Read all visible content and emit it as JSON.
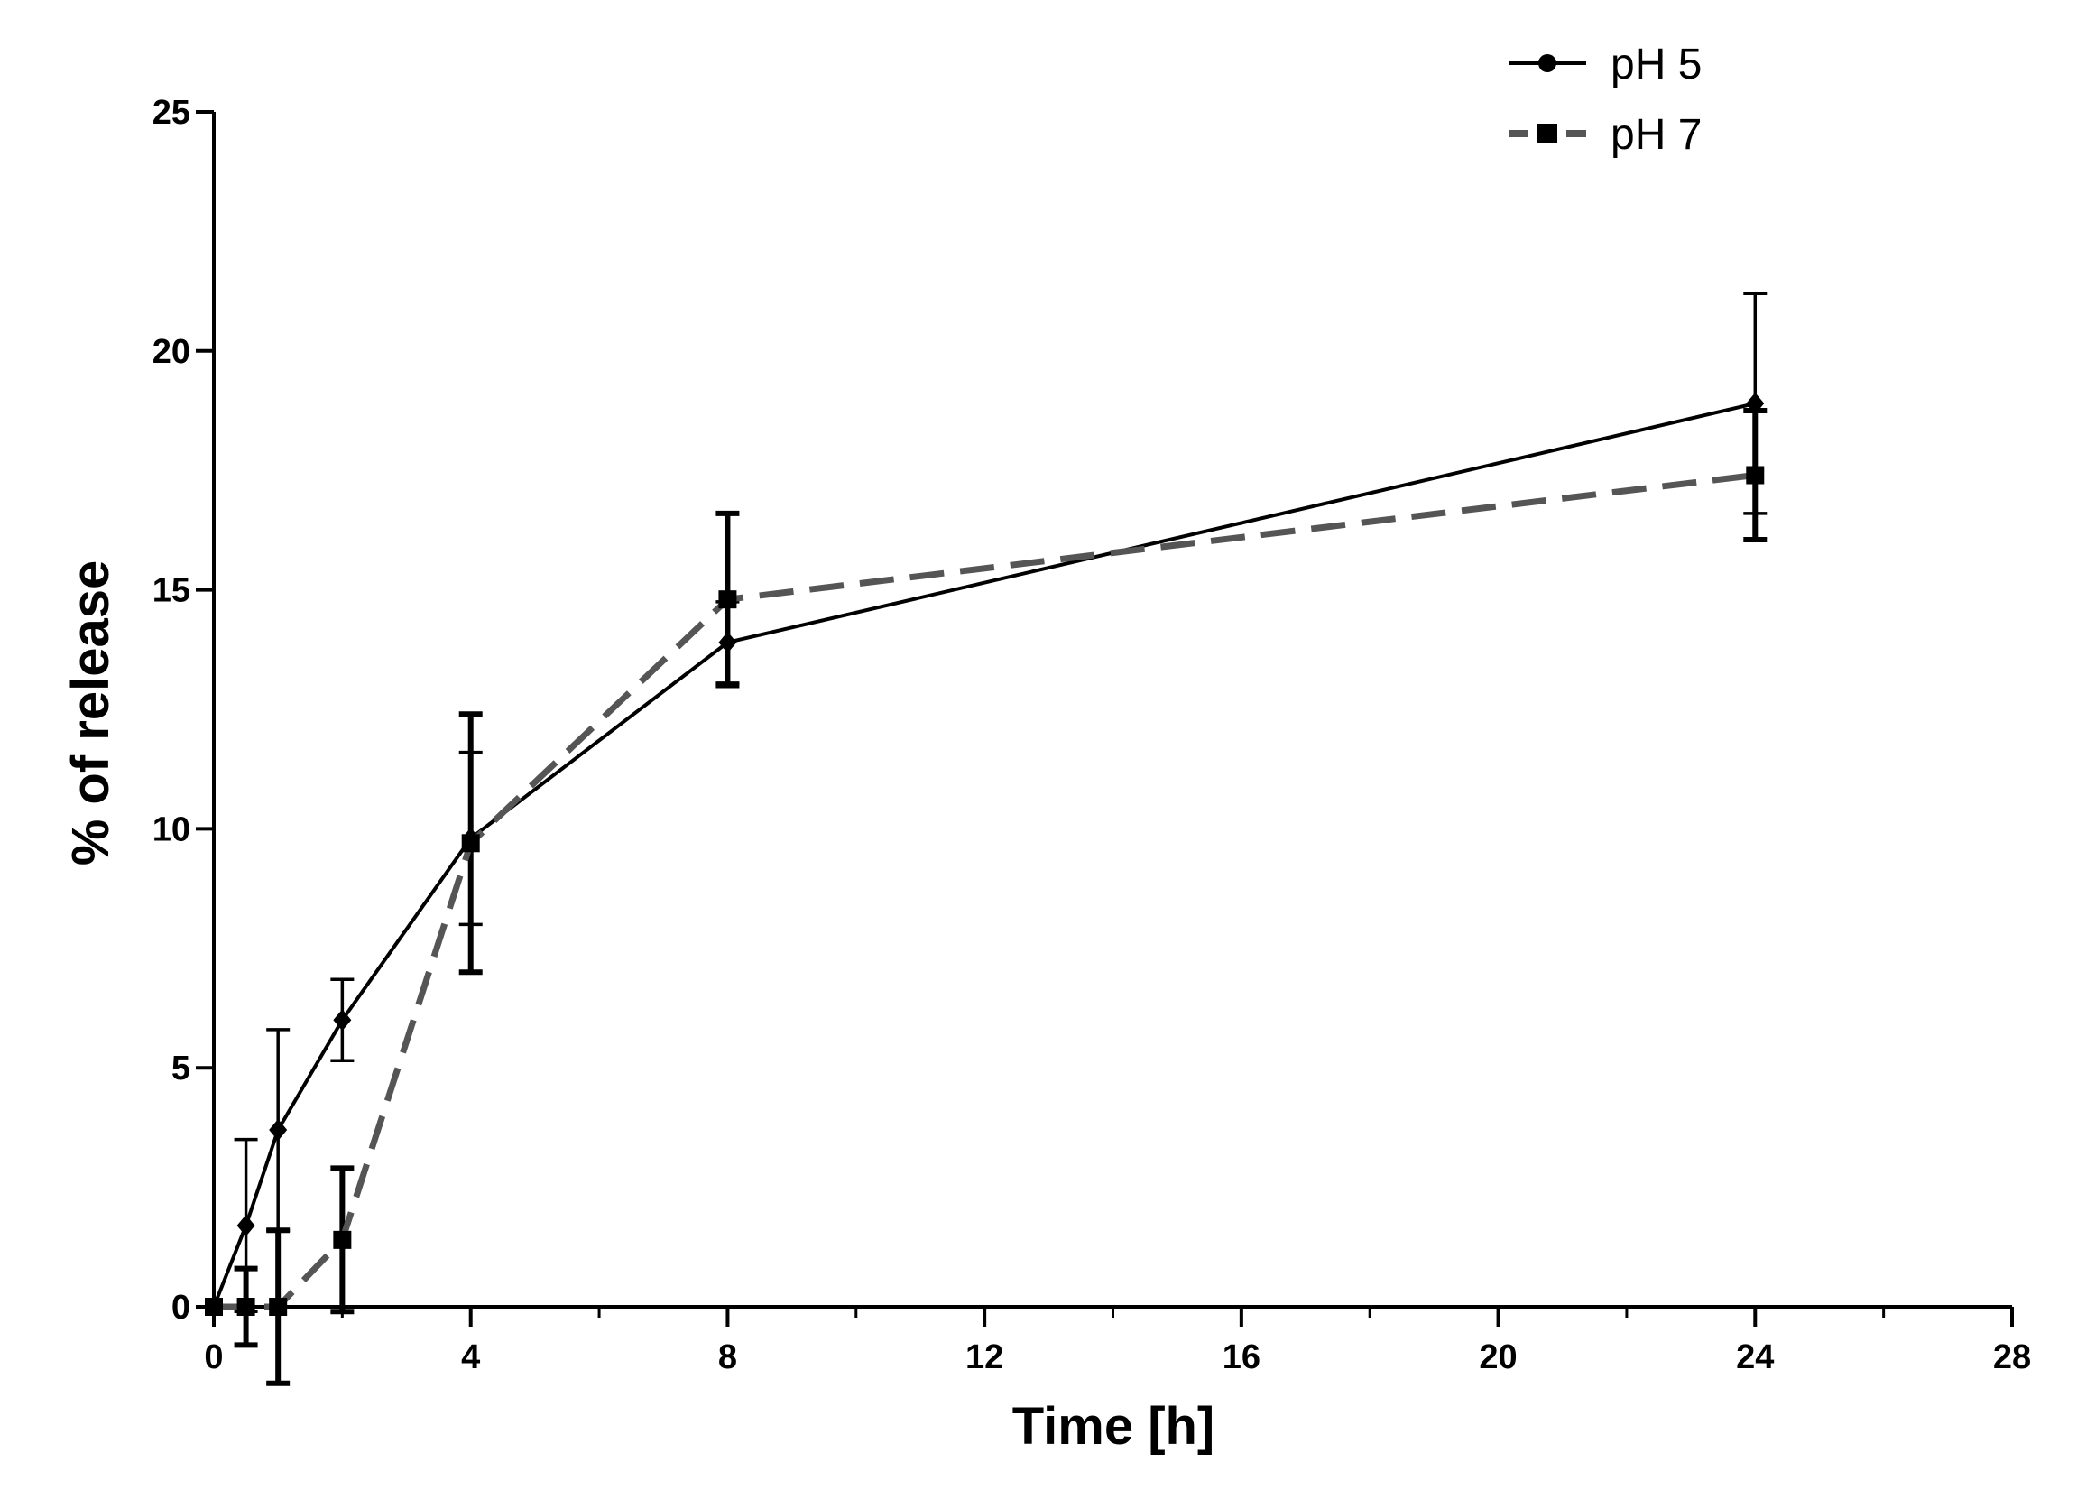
{
  "chart_data": {
    "type": "line",
    "title": "",
    "xlabel": "Time [h]",
    "ylabel": "% of release",
    "xlim": [
      0,
      28
    ],
    "ylim": [
      0,
      25
    ],
    "xticks": [
      0,
      4,
      8,
      12,
      16,
      20,
      24,
      28
    ],
    "xticks_minor_step": 2,
    "yticks": [
      0,
      5,
      10,
      15,
      20,
      25
    ],
    "grid": false,
    "legend_position": "top-right",
    "series": [
      {
        "name": "pH 5",
        "color": "#000000",
        "line_style": "solid",
        "marker": "circle",
        "x": [
          0,
          0.5,
          1,
          2,
          4,
          8,
          24
        ],
        "y": [
          0,
          1.7,
          3.7,
          6.0,
          9.8,
          13.9,
          18.9
        ],
        "error": [
          0,
          1.8,
          2.1,
          0.85,
          1.8,
          0.85,
          2.3
        ]
      },
      {
        "name": "pH 7",
        "color": "#555555",
        "line_style": "dashed",
        "marker": "square",
        "x": [
          0,
          0.5,
          1,
          2,
          4,
          8,
          24
        ],
        "y": [
          0,
          0,
          0,
          1.4,
          9.7,
          14.8,
          17.4
        ],
        "error": [
          0,
          0.8,
          1.6,
          1.5,
          2.7,
          1.8,
          1.35
        ]
      }
    ]
  }
}
